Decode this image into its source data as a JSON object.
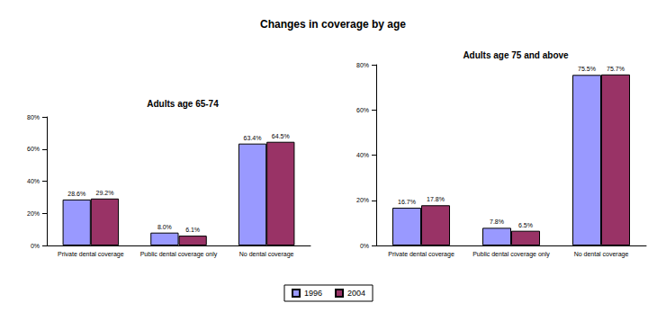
{
  "title": "Changes in coverage by age",
  "legend": "bottom",
  "chart_data": [
    {
      "type": "bar",
      "title": "Adults age 65-74",
      "categories": [
        "Private dental coverage",
        "Public dental coverage only",
        "No dental coverage"
      ],
      "series": [
        {
          "name": "1996",
          "color": "#9999ff",
          "values": [
            28.6,
            8.0,
            63.4
          ],
          "value_labels": [
            "28.6%",
            "8.0%",
            "63.4%"
          ]
        },
        {
          "name": "2004",
          "color": "#993366",
          "values": [
            29.2,
            6.1,
            64.5
          ],
          "value_labels": [
            "29.2%",
            "6.1%",
            "64.5%"
          ]
        }
      ],
      "ylim": [
        0,
        80
      ],
      "yticks": [
        {
          "value": 0,
          "label": "0%"
        },
        {
          "value": 20,
          "label": "20%"
        },
        {
          "value": 40,
          "label": "40%"
        },
        {
          "value": 60,
          "label": "60%"
        },
        {
          "value": 80,
          "label": "80%"
        }
      ],
      "grid": false,
      "data_labels": true
    },
    {
      "type": "bar",
      "title": "Adults age 75 and above",
      "categories": [
        "Private dental coverage",
        "Public dental coverage only",
        "No dental coverage"
      ],
      "series": [
        {
          "name": "1996",
          "color": "#9999ff",
          "values": [
            16.7,
            7.8,
            75.5
          ],
          "value_labels": [
            "16.7%",
            "7.8%",
            "75.5%"
          ]
        },
        {
          "name": "2004",
          "color": "#993366",
          "values": [
            17.8,
            6.5,
            75.7
          ],
          "value_labels": [
            "17.8%",
            "6.5%",
            "75.7%"
          ]
        }
      ],
      "ylim": [
        0,
        80
      ],
      "yticks": [
        {
          "value": 0,
          "label": "0%"
        },
        {
          "value": 20,
          "label": "20%"
        },
        {
          "value": 40,
          "label": "40%"
        },
        {
          "value": 60,
          "label": "60%"
        },
        {
          "value": 80,
          "label": "80%"
        }
      ],
      "grid": false,
      "data_labels": true
    }
  ]
}
